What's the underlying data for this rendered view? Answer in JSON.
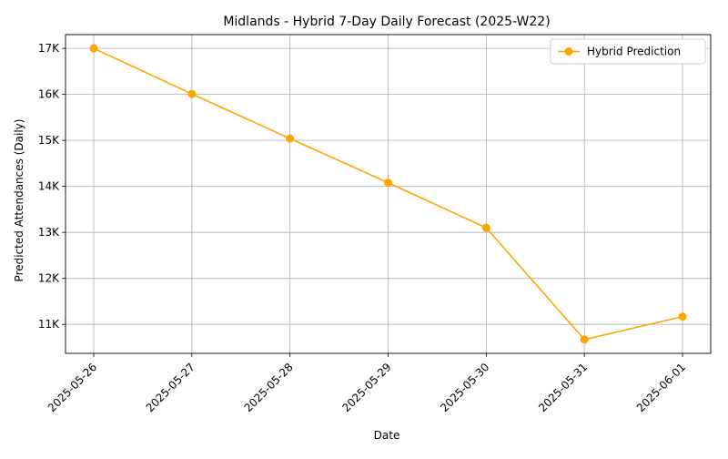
{
  "chart_data": {
    "type": "line",
    "title": "Midlands - Hybrid 7-Day Daily Forecast (2025-W22)",
    "xlabel": "Date",
    "ylabel": "Predicted Attendances (Daily)",
    "categories": [
      "2025-05-26",
      "2025-05-27",
      "2025-05-28",
      "2025-05-29",
      "2025-05-30",
      "2025-05-31",
      "2025-06-01"
    ],
    "series": [
      {
        "name": "Hybrid Prediction",
        "values": [
          17000,
          16010,
          15040,
          14080,
          13100,
          10670,
          11170
        ],
        "color": "#ffa500",
        "marker": "circle"
      }
    ],
    "y_ticks": [
      11000,
      12000,
      13000,
      14000,
      15000,
      16000,
      17000
    ],
    "y_tick_labels": [
      "11K",
      "12K",
      "13K",
      "14K",
      "15K",
      "16K",
      "17K"
    ],
    "ylim": [
      10370,
      17300
    ],
    "grid": true,
    "legend_position": "top-right",
    "x_tick_rotation": 45
  }
}
